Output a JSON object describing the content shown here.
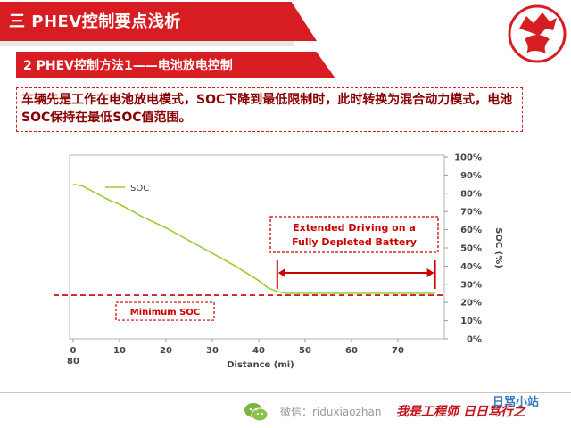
{
  "header": {
    "section_title": "三 PHEV控制要点浅析",
    "subsection_title": "2 PHEV控制方法1——电池放电控制"
  },
  "description": "车辆先是工作在电池放电模式，SOC下降到最低限制时，此时转换为混合动力模式，电池SOC保持在最低SOC值范围。",
  "colors": {
    "brand_red": "#d81d22",
    "soc_line": "#9acd32",
    "annotation_red": "#cc0000"
  },
  "chart_data": {
    "type": "line",
    "xlabel": "Distance (mi)",
    "ylabel": "SOC (%)",
    "xlim": [
      0,
      80
    ],
    "ylim": [
      0,
      100
    ],
    "x_ticks": [
      "0",
      "10",
      "20",
      "30",
      "40",
      "50",
      "60",
      "70"
    ],
    "x_tick_extra": "80",
    "y_ticks": [
      "0%",
      "10%",
      "20%",
      "30%",
      "40%",
      "50%",
      "60%",
      "70%",
      "80%",
      "90%",
      "100%"
    ],
    "series": [
      {
        "name": "SOC",
        "x": [
          0,
          2,
          5,
          8,
          10,
          15,
          20,
          25,
          30,
          35,
          40,
          42,
          44,
          46,
          50,
          60,
          70,
          78
        ],
        "y": [
          85,
          84,
          80,
          76,
          74,
          67,
          61,
          54,
          47,
          40,
          32,
          28,
          26,
          25,
          25,
          25,
          25,
          25
        ]
      }
    ],
    "minimum_soc": 24,
    "extended_range": [
      44,
      78
    ],
    "annotations": {
      "extended_driving": [
        "Extended Driving on a",
        "Fully Depleted Battery"
      ],
      "minimum_soc_label": "Minimum SOC"
    },
    "legend_position": "top-left",
    "grid": false
  },
  "footer": {
    "wechat_label": "微信：riduxiaozhan",
    "slogan": "我是工程师 日日骂行之",
    "badge": "日骂小站"
  }
}
